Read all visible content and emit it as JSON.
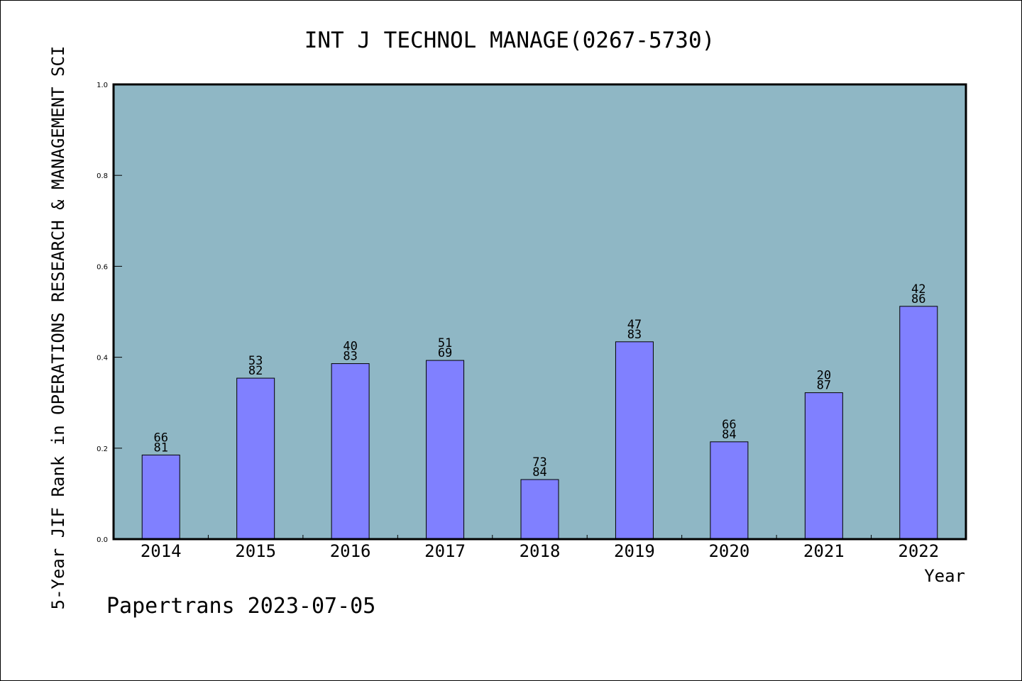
{
  "chart_data": {
    "type": "bar",
    "title": "INT J TECHNOL MANAGE(0267-5730)",
    "ylabel": "5-Year JIF Rank in OPERATIONS RESEARCH & MANAGEMENT SCI",
    "xlabel": "Year",
    "categories": [
      "2014",
      "2015",
      "2016",
      "2017",
      "2018",
      "2019",
      "2020",
      "2021",
      "2022"
    ],
    "values": [
      0.185,
      0.354,
      0.386,
      0.393,
      0.131,
      0.434,
      0.214,
      0.322,
      0.512
    ],
    "labels_top": [
      "66",
      "53",
      "40",
      "51",
      "73",
      "47",
      "66",
      "20",
      "42"
    ],
    "labels_bottom": [
      "81",
      "82",
      "83",
      "69",
      "84",
      "83",
      "84",
      "87",
      "86"
    ],
    "ylim": [
      0,
      1.0
    ],
    "yticks": [
      "0.0",
      "0.2",
      "0.4",
      "0.6",
      "0.8",
      "1.0"
    ],
    "grid": false,
    "colors": {
      "plot_bg": "#8fb7c5",
      "bar": "#8080ff",
      "bar_edge": "#000000"
    }
  },
  "footer": {
    "text": "Papertrans 2023-07-05"
  }
}
